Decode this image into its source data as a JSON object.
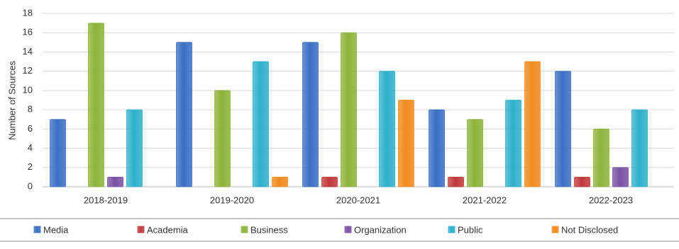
{
  "chart_data": {
    "type": "bar",
    "y_label": "Number of Sources",
    "categories": [
      "2018-2019",
      "2019-2020",
      "2020-2021",
      "2021-2022",
      "2022-2023"
    ],
    "series": [
      {
        "name": "Media",
        "color": "#3a6fc4",
        "values": [
          7,
          15,
          15,
          8,
          12
        ]
      },
      {
        "name": "Academia",
        "color": "#c0393b",
        "values": [
          0,
          0,
          1,
          1,
          1
        ]
      },
      {
        "name": "Business",
        "color": "#8db33a",
        "values": [
          17,
          10,
          16,
          7,
          6
        ]
      },
      {
        "name": "Organization",
        "color": "#7a50a4",
        "values": [
          1,
          0,
          0,
          0,
          2
        ]
      },
      {
        "name": "Public",
        "color": "#2fb0cc",
        "values": [
          8,
          13,
          12,
          9,
          8
        ]
      },
      {
        "name": "Not Disclosed",
        "color": "#f08a1e",
        "values": [
          0,
          1,
          9,
          13,
          0
        ]
      }
    ],
    "ylim": [
      0,
      18
    ],
    "yticks": [
      0,
      2,
      4,
      6,
      8,
      10,
      12,
      14,
      16,
      18
    ],
    "grid": true,
    "legend": "bottom"
  }
}
